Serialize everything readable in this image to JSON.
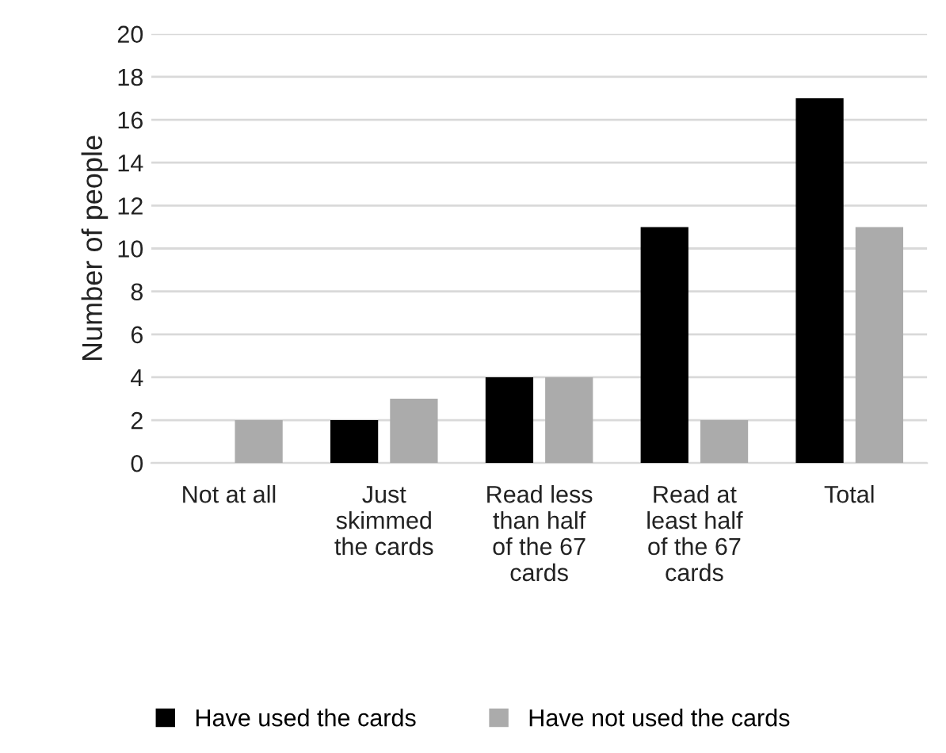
{
  "chart_data": {
    "type": "bar",
    "ylabel": "Number of people",
    "categories": [
      "Not at all",
      "Just\nskimmed\nthe cards",
      "Read less\nthan half\nof the 67\ncards",
      "Read at\nleast half\nof the 67\ncards",
      "Total"
    ],
    "series": [
      {
        "name": "Have used the cards",
        "color": "#000000",
        "values": [
          0,
          2,
          4,
          11,
          17
        ]
      },
      {
        "name": "Have not used the cards",
        "color": "#ababab",
        "values": [
          2,
          3,
          4,
          2,
          11
        ]
      }
    ],
    "ylim": [
      0,
      20
    ],
    "yticks": [
      0,
      2,
      4,
      6,
      8,
      10,
      12,
      14,
      16,
      18,
      20
    ],
    "grid": "y",
    "legend": "bottom"
  }
}
